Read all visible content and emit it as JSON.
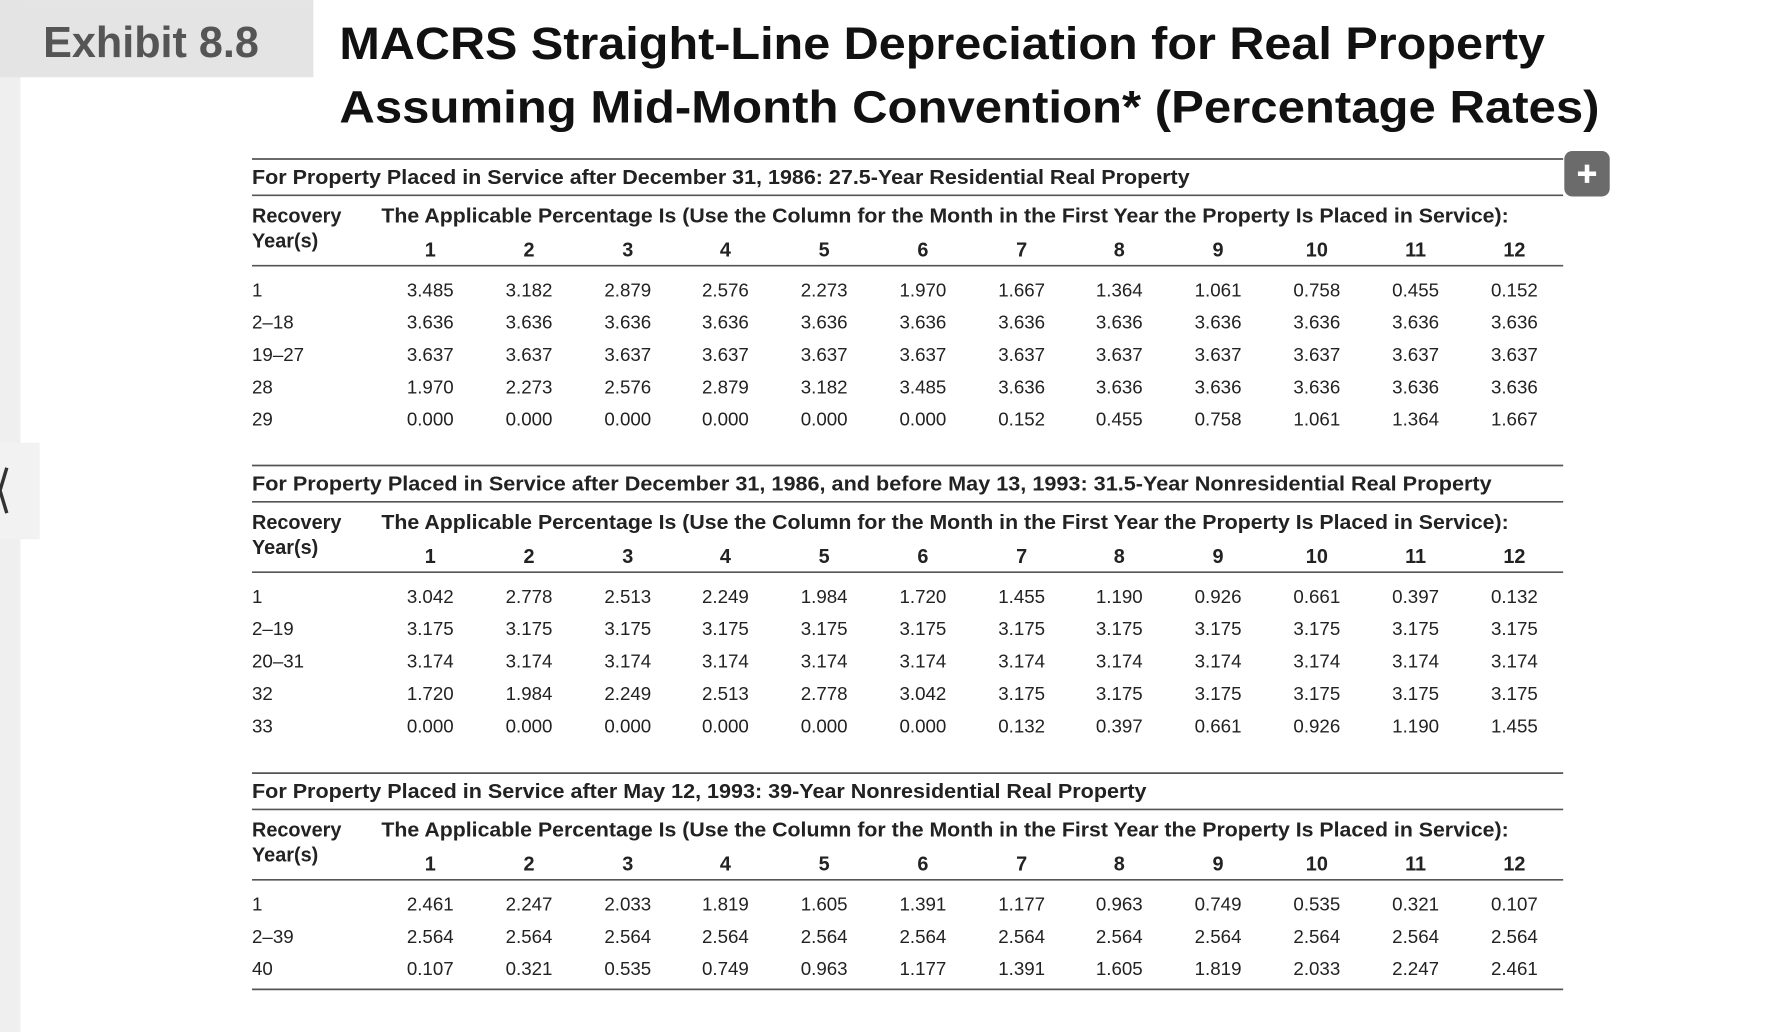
{
  "header": {
    "label": "Exhibit 8.8",
    "title_lines": [
      "MACRS Straight-Line Depreciation for Real Property",
      "Assuming Mid-Month Convention* (Percentage Rates)"
    ]
  },
  "tables": [
    {
      "heading": "For Property Placed in Service after December 31, 1986: 27.5-Year Residential Real Property",
      "row_header": [
        "Recovery",
        "Year(s)"
      ],
      "column_header": "The Applicable Percentage Is (Use the Column for the Month in the First Year the Property Is Placed in Service):",
      "months": [
        1,
        2,
        3,
        4,
        5,
        6,
        7,
        8,
        9,
        10,
        11,
        12
      ],
      "rows": [
        {
          "label": "1",
          "values": [
            "3.485",
            "3.182",
            "2.879",
            "2.576",
            "2.273",
            "1.970",
            "1.667",
            "1.364",
            "1.061",
            "0.758",
            "0.455",
            "0.152"
          ]
        },
        {
          "label": "2–18",
          "values": [
            "3.636",
            "3.636",
            "3.636",
            "3.636",
            "3.636",
            "3.636",
            "3.636",
            "3.636",
            "3.636",
            "3.636",
            "3.636",
            "3.636"
          ]
        },
        {
          "label": "19–27",
          "values": [
            "3.637",
            "3.637",
            "3.637",
            "3.637",
            "3.637",
            "3.637",
            "3.637",
            "3.637",
            "3.637",
            "3.637",
            "3.637",
            "3.637"
          ]
        },
        {
          "label": "28",
          "values": [
            "1.970",
            "2.273",
            "2.576",
            "2.879",
            "3.182",
            "3.485",
            "3.636",
            "3.636",
            "3.636",
            "3.636",
            "3.636",
            "3.636"
          ]
        },
        {
          "label": "29",
          "values": [
            "0.000",
            "0.000",
            "0.000",
            "0.000",
            "0.000",
            "0.000",
            "0.152",
            "0.455",
            "0.758",
            "1.061",
            "1.364",
            "1.667"
          ]
        }
      ]
    },
    {
      "heading": "For Property Placed in Service after December 31, 1986, and before May 13, 1993: 31.5-Year Nonresidential Real Property",
      "row_header": [
        "Recovery",
        "Year(s)"
      ],
      "column_header": "The Applicable Percentage Is (Use the Column for the Month in the First Year the Property Is Placed in Service):",
      "months": [
        1,
        2,
        3,
        4,
        5,
        6,
        7,
        8,
        9,
        10,
        11,
        12
      ],
      "rows": [
        {
          "label": "1",
          "values": [
            "3.042",
            "2.778",
            "2.513",
            "2.249",
            "1.984",
            "1.720",
            "1.455",
            "1.190",
            "0.926",
            "0.661",
            "0.397",
            "0.132"
          ]
        },
        {
          "label": "2–19",
          "values": [
            "3.175",
            "3.175",
            "3.175",
            "3.175",
            "3.175",
            "3.175",
            "3.175",
            "3.175",
            "3.175",
            "3.175",
            "3.175",
            "3.175"
          ]
        },
        {
          "label": "20–31",
          "values": [
            "3.174",
            "3.174",
            "3.174",
            "3.174",
            "3.174",
            "3.174",
            "3.174",
            "3.174",
            "3.174",
            "3.174",
            "3.174",
            "3.174"
          ]
        },
        {
          "label": "32",
          "values": [
            "1.720",
            "1.984",
            "2.249",
            "2.513",
            "2.778",
            "3.042",
            "3.175",
            "3.175",
            "3.175",
            "3.175",
            "3.175",
            "3.175"
          ]
        },
        {
          "label": "33",
          "values": [
            "0.000",
            "0.000",
            "0.000",
            "0.000",
            "0.000",
            "0.000",
            "0.132",
            "0.397",
            "0.661",
            "0.926",
            "1.190",
            "1.455"
          ]
        }
      ]
    },
    {
      "heading": "For Property Placed in Service after May 12, 1993: 39-Year Nonresidential Real Property",
      "row_header": [
        "Recovery",
        "Year(s)"
      ],
      "column_header": "The Applicable Percentage Is (Use the Column for the Month in the First Year the Property Is Placed in Service):",
      "months": [
        1,
        2,
        3,
        4,
        5,
        6,
        7,
        8,
        9,
        10,
        11,
        12
      ],
      "rows": [
        {
          "label": "1",
          "values": [
            "2.461",
            "2.247",
            "2.033",
            "1.819",
            "1.605",
            "1.391",
            "1.177",
            "0.963",
            "0.749",
            "0.535",
            "0.321",
            "0.107"
          ]
        },
        {
          "label": "2–39",
          "values": [
            "2.564",
            "2.564",
            "2.564",
            "2.564",
            "2.564",
            "2.564",
            "2.564",
            "2.564",
            "2.564",
            "2.564",
            "2.564",
            "2.564"
          ]
        },
        {
          "label": "40",
          "values": [
            "0.107",
            "0.321",
            "0.535",
            "0.749",
            "0.963",
            "1.177",
            "1.391",
            "1.605",
            "1.819",
            "2.033",
            "2.247",
            "2.461"
          ]
        }
      ]
    }
  ]
}
